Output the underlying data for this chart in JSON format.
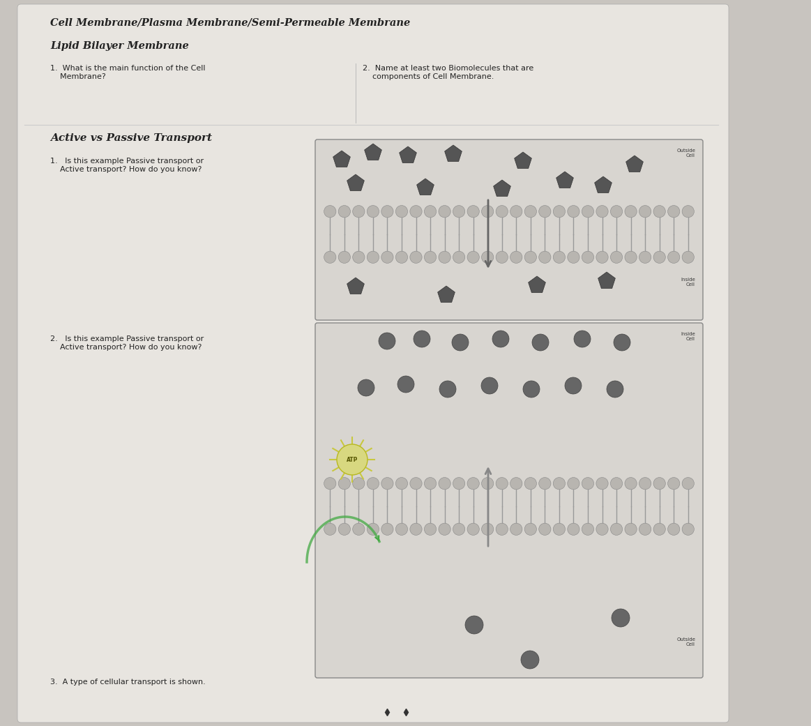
{
  "title_line1": "Cell Membrane/Plasma Membrane/Semi-Permeable Membrane",
  "title_line2": "Lipid Bilayer Membrane",
  "q1_text": "1.  What is the main function of the Cell\n    Membrane?",
  "q2_text": "2.  Name at least two Biomolecules that are\n    components of Cell Membrane.",
  "section2_title": "Active vs Passive Transport",
  "q3_text": "1.   Is this example Passive transport or\n    Active transport? How do you know?",
  "q4_text": "2.   Is this example Passive transport or\n    Active transport? How do you know?",
  "q5_text": "3.  A type of cellular transport is shown.",
  "bg_color": "#c8c4bf",
  "paper_color": "#e8e5e0",
  "diagram_bg": "#d8d5d0",
  "membrane_color": "#b8b5b0",
  "particle_dark": "#555555",
  "particle_circle": "#666666",
  "arrow_color": "#777777",
  "atp_color": "#d8d880"
}
